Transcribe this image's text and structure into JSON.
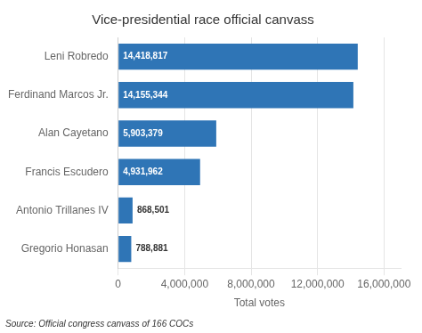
{
  "chart_data": {
    "type": "bar",
    "orientation": "horizontal",
    "title": "Vice-presidential race official canvass",
    "categories": [
      "Leni Robredo",
      "Ferdinand Marcos Jr.",
      "Alan Cayetano",
      "Francis Escudero",
      "Antonio Trillanes IV",
      "Gregorio Honasan"
    ],
    "values": [
      14418817,
      14155344,
      5903379,
      4931962,
      868501,
      788881
    ],
    "value_labels": [
      "14,418,817",
      "14,155,344",
      "5,903,379",
      "4,931,962",
      "868,501",
      "788,881"
    ],
    "data_labels": true,
    "color": "#2f75b6",
    "x_label": "Total votes",
    "xlim": [
      0,
      17000000
    ],
    "xticks": [
      0,
      {
        "value": 4000000,
        "label": "4,000,000"
      },
      {
        "value": 8000000,
        "label": "8,000,000"
      },
      {
        "value": 12000000,
        "label": "12,000,000"
      },
      {
        "value": 16000000,
        "label": "16,000,000"
      }
    ],
    "grid": true,
    "annotation": "Source: Official congress canvass of 166 COCs"
  }
}
